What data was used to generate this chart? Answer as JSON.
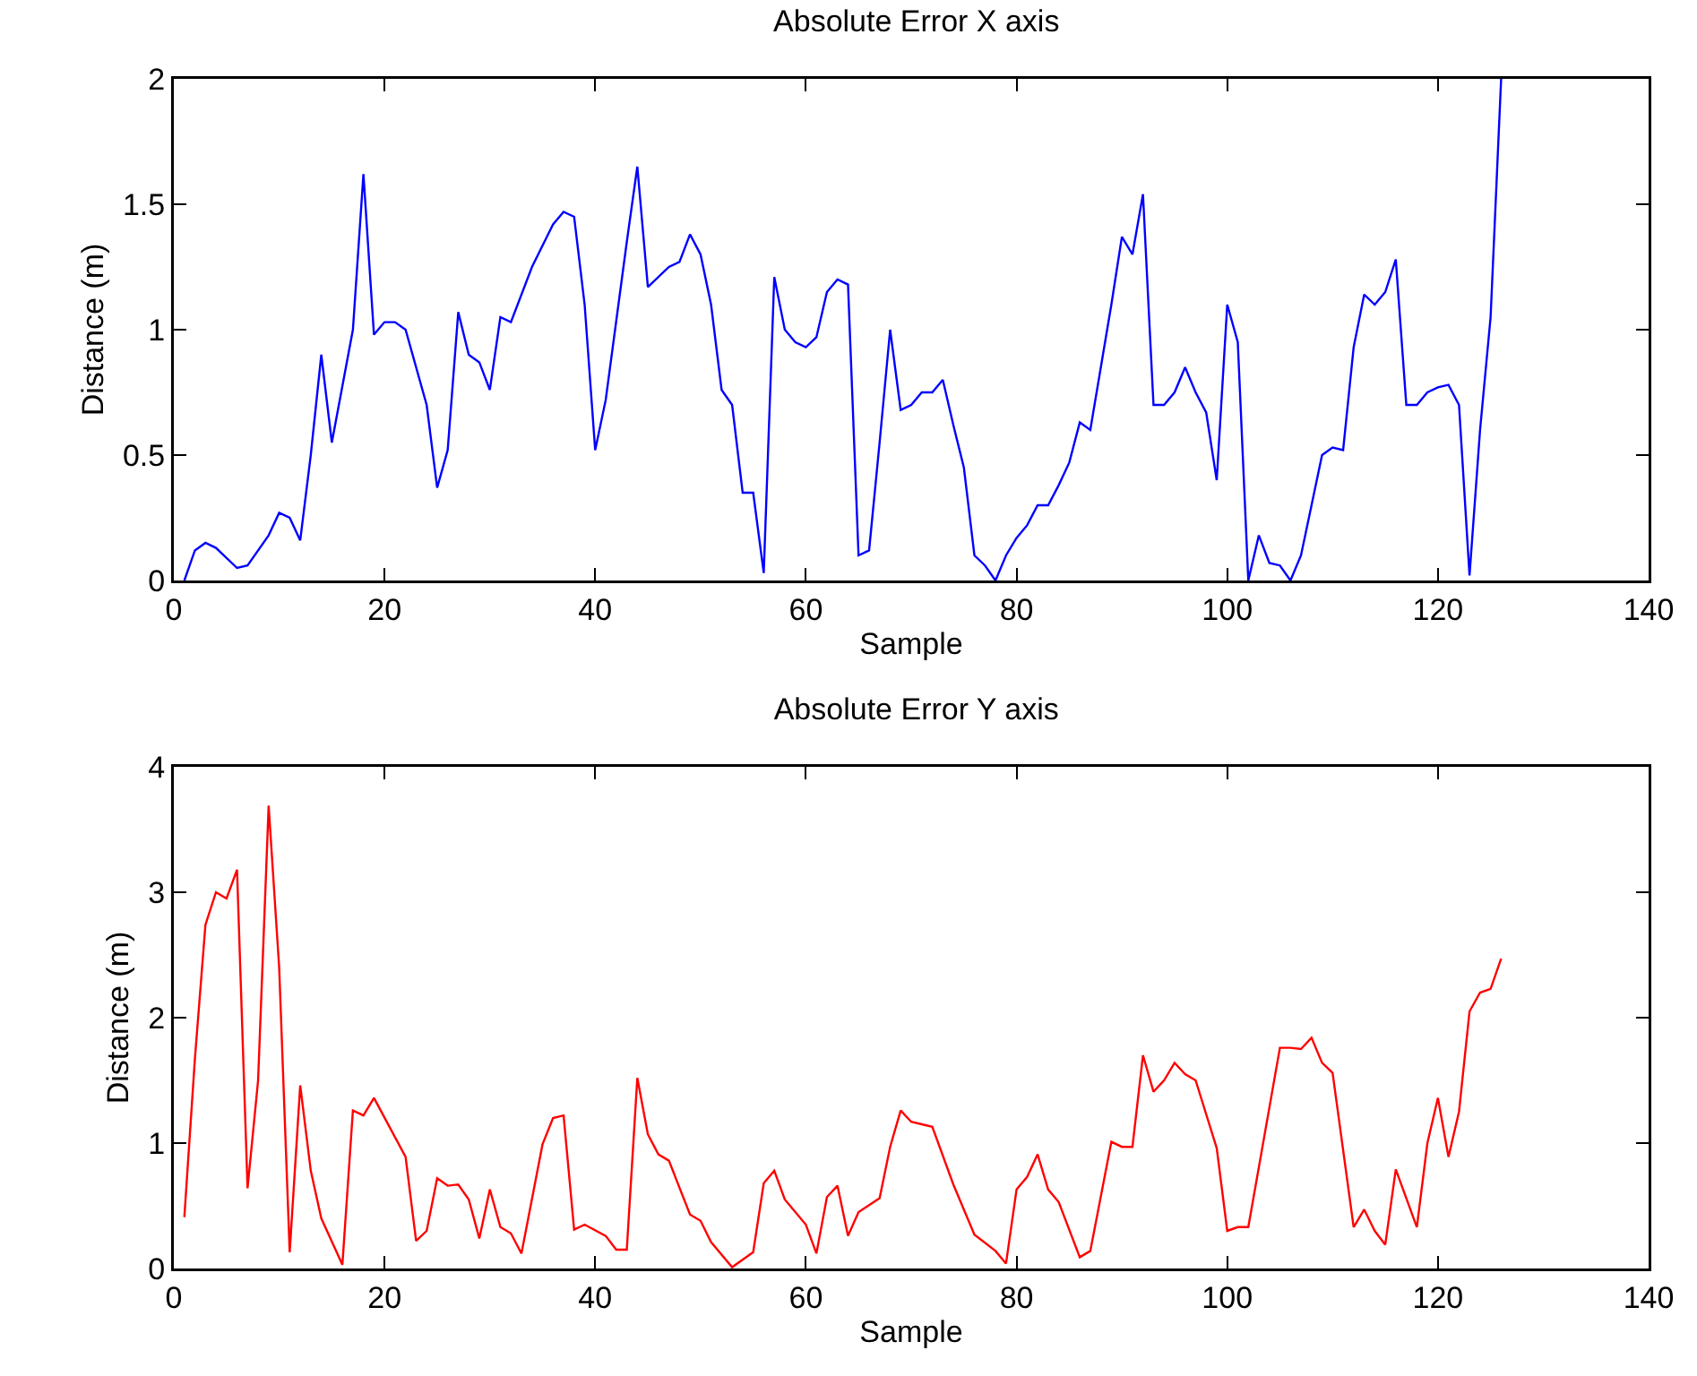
{
  "chart_data": [
    {
      "type": "line",
      "title": "Absolute Error X axis",
      "xlabel": "Sample",
      "ylabel": "Distance (m)",
      "xlim": [
        0,
        140
      ],
      "xticks": [
        0,
        20,
        40,
        60,
        80,
        100,
        120,
        140
      ],
      "ylim": [
        0,
        2
      ],
      "yticks": [
        0,
        0.5,
        1,
        1.5,
        2
      ],
      "grid": false,
      "marker": "none",
      "line_style": "solid",
      "series": [
        {
          "color": "#0000ff",
          "x": [
            1,
            2,
            3,
            4,
            6,
            7,
            9,
            10,
            11,
            12,
            13,
            14,
            15,
            17,
            18,
            19,
            20,
            21,
            22,
            24,
            25,
            26,
            27,
            28,
            29,
            30,
            31,
            32,
            34,
            36,
            37,
            38,
            39,
            40,
            41,
            43,
            44,
            45,
            47,
            48,
            49,
            50,
            51,
            52,
            53,
            54,
            55,
            56,
            57,
            58,
            59,
            60,
            61,
            62,
            63,
            64,
            65,
            66,
            67,
            68,
            69,
            70,
            71,
            72,
            73,
            74,
            75,
            76,
            77,
            78,
            79,
            80,
            81,
            82,
            83,
            84,
            85,
            86,
            87,
            88,
            89,
            90,
            91,
            92,
            93,
            94,
            95,
            96,
            97,
            98,
            99,
            100,
            101,
            102,
            103,
            104,
            105,
            106,
            107,
            108,
            109,
            110,
            111,
            112,
            113,
            114,
            115,
            116,
            117,
            118,
            119,
            120,
            121,
            122,
            123,
            124,
            125,
            126
          ],
          "values": [
            0,
            0.12,
            0.15,
            0.13,
            0.05,
            0.06,
            0.18,
            0.27,
            0.25,
            0.16,
            0.5,
            0.9,
            0.55,
            1.0,
            1.62,
            0.98,
            1.03,
            1.03,
            1.0,
            0.7,
            0.37,
            0.52,
            1.07,
            0.9,
            0.87,
            0.76,
            1.05,
            1.03,
            1.25,
            1.42,
            1.47,
            1.45,
            1.1,
            0.52,
            0.72,
            1.35,
            1.65,
            1.17,
            1.25,
            1.27,
            1.38,
            1.3,
            1.1,
            0.76,
            0.7,
            0.35,
            0.35,
            0.03,
            1.21,
            1.0,
            0.95,
            0.93,
            0.97,
            1.15,
            1.2,
            1.18,
            0.1,
            0.12,
            0.55,
            1.0,
            0.68,
            0.7,
            0.75,
            0.75,
            0.8,
            0.62,
            0.45,
            0.1,
            0.06,
            0,
            0.1,
            0.17,
            0.22,
            0.3,
            0.3,
            0.38,
            0.47,
            0.63,
            0.6,
            0.85,
            1.1,
            1.37,
            1.3,
            1.54,
            0.7,
            0.7,
            0.75,
            0.85,
            0.75,
            0.67,
            0.4,
            1.1,
            0.95,
            0,
            0.18,
            0.07,
            0.06,
            0,
            0.1,
            0.3,
            0.5,
            0.53,
            0.52,
            0.93,
            1.14,
            1.1,
            1.15,
            1.28,
            0.7,
            0.7,
            0.75,
            0.77,
            0.78,
            0.7,
            0.02,
            0.6,
            1.05,
            2.0
          ]
        }
      ]
    },
    {
      "type": "line",
      "title": "Absolute Error Y axis",
      "xlabel": "Sample",
      "ylabel": "Distance (m)",
      "xlim": [
        0,
        140
      ],
      "xticks": [
        0,
        20,
        40,
        60,
        80,
        100,
        120,
        140
      ],
      "ylim": [
        0,
        4
      ],
      "yticks": [
        0,
        1,
        2,
        3,
        4
      ],
      "grid": false,
      "marker": "none",
      "line_style": "solid",
      "series": [
        {
          "color": "#ff0000",
          "x": [
            1,
            2,
            3,
            4,
            5,
            6,
            7,
            8,
            9,
            10,
            11,
            12,
            13,
            14,
            16,
            17,
            18,
            19,
            22,
            23,
            24,
            25,
            26,
            27,
            28,
            29,
            30,
            31,
            32,
            33,
            35,
            36,
            37,
            38,
            39,
            41,
            42,
            43,
            44,
            45,
            46,
            47,
            49,
            50,
            51,
            53,
            55,
            56,
            57,
            58,
            60,
            61,
            62,
            63,
            64,
            65,
            67,
            68,
            69,
            70,
            71,
            72,
            74,
            76,
            78,
            79,
            80,
            81,
            82,
            83,
            84,
            86,
            87,
            89,
            90,
            91,
            92,
            93,
            94,
            95,
            96,
            97,
            99,
            100,
            101,
            102,
            105,
            106,
            107,
            108,
            109,
            110,
            112,
            113,
            114,
            115,
            116,
            117,
            118,
            119,
            120,
            121,
            122,
            123,
            124,
            125,
            126
          ],
          "values": [
            0.41,
            1.67,
            2.74,
            3.0,
            2.95,
            3.18,
            0.64,
            1.5,
            3.69,
            2.4,
            0.13,
            1.46,
            0.78,
            0.4,
            0.03,
            1.26,
            1.22,
            1.36,
            0.89,
            0.22,
            0.3,
            0.72,
            0.66,
            0.67,
            0.55,
            0.24,
            0.63,
            0.33,
            0.28,
            0.12,
            0.99,
            1.2,
            1.22,
            0.31,
            0.35,
            0.26,
            0.15,
            0.15,
            1.52,
            1.07,
            0.91,
            0.86,
            0.43,
            0.38,
            0.21,
            0.01,
            0.13,
            0.68,
            0.78,
            0.55,
            0.35,
            0.12,
            0.57,
            0.66,
            0.26,
            0.45,
            0.56,
            0.97,
            1.26,
            1.17,
            1.15,
            1.13,
            0.67,
            0.27,
            0.14,
            0.04,
            0.63,
            0.73,
            0.91,
            0.63,
            0.53,
            0.09,
            0.14,
            1.01,
            0.97,
            0.97,
            1.7,
            1.41,
            1.5,
            1.64,
            1.55,
            1.5,
            0.96,
            0.3,
            0.33,
            0.33,
            1.76,
            1.76,
            1.75,
            1.84,
            1.64,
            1.56,
            0.33,
            0.47,
            0.3,
            0.19,
            0.79,
            0.56,
            0.33,
            1.0,
            1.36,
            0.89,
            1.25,
            2.05,
            2.2,
            2.23,
            2.47
          ]
        }
      ]
    }
  ]
}
